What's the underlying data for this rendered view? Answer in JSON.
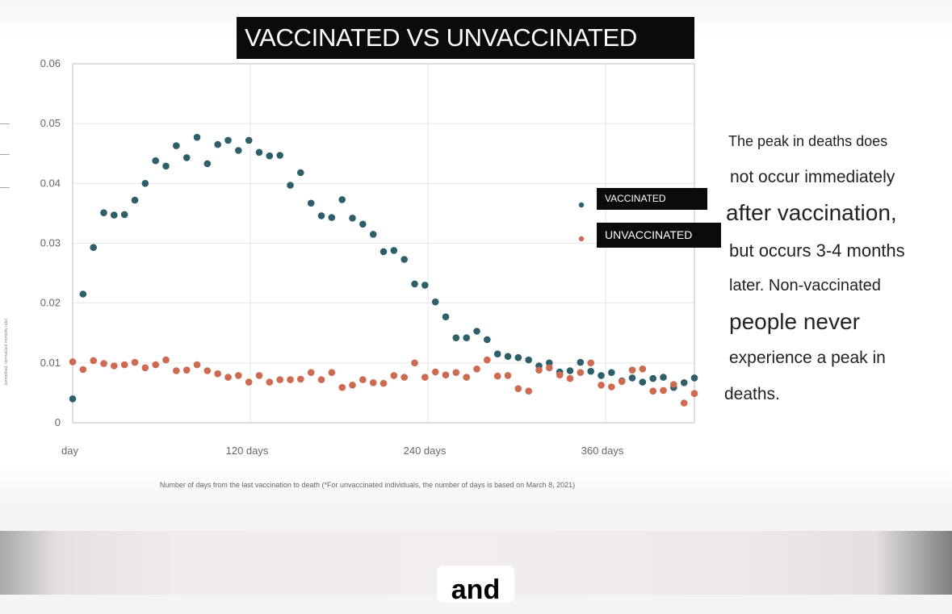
{
  "header": {
    "title": "VACCINATED VS UNVACCINATED"
  },
  "side_text": {
    "lines": [
      "The peak in deaths does",
      "not occur immediately",
      "after vaccination,",
      "but occurs 3-4 months",
      "later. Non-vaccinated",
      "people never",
      "experience a peak in",
      "deaths."
    ]
  },
  "caption": {
    "word": "and"
  },
  "colors": {
    "vaccinated": "#2c5f6a",
    "unvaccinated": "#cd6a4f"
  },
  "chart_data": {
    "type": "scatter",
    "title": "VACCINATED VS UNVACCINATED",
    "xlabel": "Number of days from the last vaccination to death (*For unvaccinated individuals, the number of days is based on March 8, 2021)",
    "ylabel": "(smoothed, normalized mortality rate)",
    "xlim": [
      0,
      420
    ],
    "ylim": [
      0,
      0.06
    ],
    "x_tick_labels": [
      {
        "value": 0,
        "label": "day"
      },
      {
        "value": 120,
        "label": "120 days"
      },
      {
        "value": 240,
        "label": "240 days"
      },
      {
        "value": 360,
        "label": "360 days"
      }
    ],
    "y_tick_labels": [
      {
        "value": 0,
        "label": "0"
      },
      {
        "value": 0.01,
        "label": "0.01"
      },
      {
        "value": 0.02,
        "label": "0.02"
      },
      {
        "value": 0.03,
        "label": "0.03"
      },
      {
        "value": 0.04,
        "label": "0.04"
      },
      {
        "value": 0.05,
        "label": "0.05"
      },
      {
        "value": 0.06,
        "label": "0.06"
      }
    ],
    "grid": true,
    "legend_position": "right",
    "series": [
      {
        "name": "VACCINATED",
        "color": "#2c5f6a",
        "x": [
          0,
          7,
          14,
          21,
          28,
          35,
          42,
          49,
          56,
          63,
          70,
          77,
          84,
          91,
          98,
          105,
          112,
          119,
          126,
          133,
          140,
          147,
          154,
          161,
          168,
          175,
          182,
          189,
          196,
          203,
          210,
          217,
          224,
          231,
          238,
          245,
          252,
          259,
          266,
          273,
          280,
          287,
          294,
          301,
          308,
          315,
          322,
          329,
          336,
          343,
          350,
          357,
          364,
          371,
          378,
          385,
          392,
          399,
          406,
          413,
          420
        ],
        "values": [
          0.004,
          0.0215,
          0.0293,
          0.0351,
          0.0347,
          0.0348,
          0.0372,
          0.04,
          0.0438,
          0.0429,
          0.0463,
          0.0443,
          0.0477,
          0.0433,
          0.0465,
          0.0472,
          0.0455,
          0.0472,
          0.0452,
          0.0446,
          0.0447,
          0.0397,
          0.0418,
          0.0367,
          0.0346,
          0.0343,
          0.0373,
          0.0342,
          0.0332,
          0.0315,
          0.0286,
          0.0288,
          0.0273,
          0.0232,
          0.023,
          0.0202,
          0.0177,
          0.0142,
          0.0142,
          0.0153,
          0.0139,
          0.0115,
          0.0111,
          0.0109,
          0.0105,
          0.0095,
          0.01,
          0.0085,
          0.0087,
          0.0101,
          0.0086,
          0.0079,
          0.0084,
          0.007,
          0.0075,
          0.0068,
          0.0074,
          0.0076,
          0.0059,
          0.0067,
          0.0075
        ]
      },
      {
        "name": "UNVACCINATED",
        "color": "#cd6a4f",
        "x": [
          0,
          7,
          14,
          21,
          28,
          35,
          42,
          49,
          56,
          63,
          70,
          77,
          84,
          91,
          98,
          105,
          112,
          119,
          126,
          133,
          140,
          147,
          154,
          161,
          168,
          175,
          182,
          189,
          196,
          203,
          210,
          217,
          224,
          231,
          238,
          245,
          252,
          259,
          266,
          273,
          280,
          287,
          294,
          301,
          308,
          315,
          322,
          329,
          336,
          343,
          350,
          357,
          364,
          371,
          378,
          385,
          392,
          399,
          406,
          413,
          420
        ],
        "values": [
          0.0102,
          0.0089,
          0.0104,
          0.0099,
          0.0095,
          0.0097,
          0.0101,
          0.0092,
          0.0097,
          0.0105,
          0.0087,
          0.0088,
          0.0097,
          0.0087,
          0.0082,
          0.0076,
          0.0079,
          0.0068,
          0.0079,
          0.0068,
          0.0072,
          0.0072,
          0.0073,
          0.0084,
          0.0072,
          0.0084,
          0.0059,
          0.0063,
          0.0072,
          0.0067,
          0.0066,
          0.0079,
          0.0076,
          0.01,
          0.0076,
          0.0085,
          0.008,
          0.0084,
          0.0076,
          0.009,
          0.0105,
          0.0078,
          0.0079,
          0.0057,
          0.0053,
          0.0088,
          0.0092,
          0.008,
          0.0074,
          0.0084,
          0.01,
          0.0063,
          0.006,
          0.0069,
          0.0088,
          0.009,
          0.0053,
          0.0054,
          0.0064,
          0.0033,
          0.0049
        ]
      }
    ]
  }
}
